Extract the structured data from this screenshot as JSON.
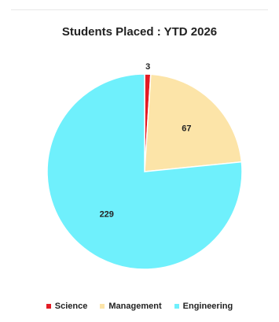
{
  "chart_data": {
    "type": "pie",
    "title": "Students Placed : YTD 2026",
    "categories": [
      "Science",
      "Management",
      "Engineering"
    ],
    "values": [
      3,
      67,
      229
    ],
    "data_labels": [
      "3",
      "67",
      "229"
    ],
    "colors": [
      "#e31c25",
      "#fce4a8",
      "#6ff0fc"
    ],
    "start_angle_deg": 0,
    "direction": "clockwise",
    "legend_position": "bottom",
    "slice_border_color": "#ffffff"
  }
}
